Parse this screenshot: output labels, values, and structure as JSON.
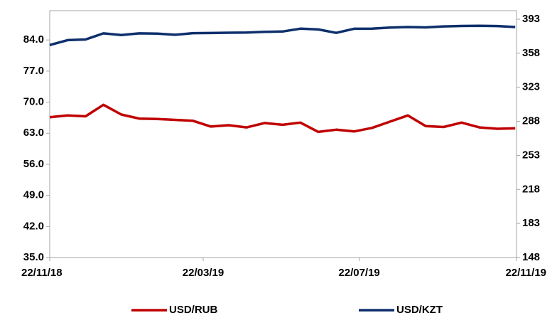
{
  "chart_data": {
    "type": "line",
    "x": [
      "2018-11-22",
      "2018-12-06",
      "2018-12-20",
      "2019-01-03",
      "2019-01-17",
      "2019-01-31",
      "2019-02-14",
      "2019-02-28",
      "2019-03-14",
      "2019-03-28",
      "2019-04-11",
      "2019-04-25",
      "2019-05-09",
      "2019-05-23",
      "2019-06-06",
      "2019-06-20",
      "2019-07-04",
      "2019-07-18",
      "2019-08-01",
      "2019-08-15",
      "2019-08-29",
      "2019-09-12",
      "2019-09-26",
      "2019-10-10",
      "2019-10-24",
      "2019-11-07",
      "2019-11-21"
    ],
    "series": [
      {
        "name": "USD/RUB",
        "color": "#c00000",
        "axis": "y",
        "values": [
          66.6,
          67.0,
          66.8,
          69.4,
          67.2,
          66.3,
          66.2,
          66.0,
          65.8,
          64.5,
          64.8,
          64.3,
          65.3,
          64.9,
          65.4,
          63.3,
          63.8,
          63.4,
          64.2,
          65.6,
          67.0,
          64.6,
          64.4,
          65.4,
          64.3,
          64.0,
          64.1
        ]
      },
      {
        "name": "USD/KZT",
        "color": "#0e2f6b",
        "axis": "y2",
        "values": [
          366.5,
          371.5,
          372.2,
          378.5,
          376.8,
          378.5,
          378.2,
          377.0,
          378.7,
          378.8,
          379.1,
          379.3,
          380.0,
          380.4,
          383.3,
          382.5,
          379.0,
          383.2,
          383.3,
          384.4,
          385.0,
          384.6,
          385.6,
          386.1,
          386.3,
          386.0,
          385.0
        ]
      }
    ],
    "xlim": [
      "2018-11-22",
      "2019-11-22"
    ],
    "xticks": [
      {
        "value": "2018-11-22",
        "label": "22/11/18"
      },
      {
        "value": "2019-03-22",
        "label": "22/03/19"
      },
      {
        "value": "2019-07-22",
        "label": "22/07/19"
      },
      {
        "value": "2019-11-22",
        "label": "22/11/19"
      }
    ],
    "ylim": [
      35,
      90.6
    ],
    "yticks": [
      {
        "value": 35,
        "label": "35.0"
      },
      {
        "value": 42,
        "label": "42.0"
      },
      {
        "value": 49,
        "label": "49.0"
      },
      {
        "value": 56,
        "label": "56.0"
      },
      {
        "value": 63,
        "label": "63.0"
      },
      {
        "value": 70,
        "label": "70.0"
      },
      {
        "value": 77,
        "label": "77.0"
      },
      {
        "value": 84,
        "label": "84.0"
      }
    ],
    "y2lim": [
      148,
      401.8
    ],
    "y2ticks": [
      148,
      183,
      218,
      253,
      288,
      323,
      358,
      393
    ],
    "legend": "bottom"
  }
}
